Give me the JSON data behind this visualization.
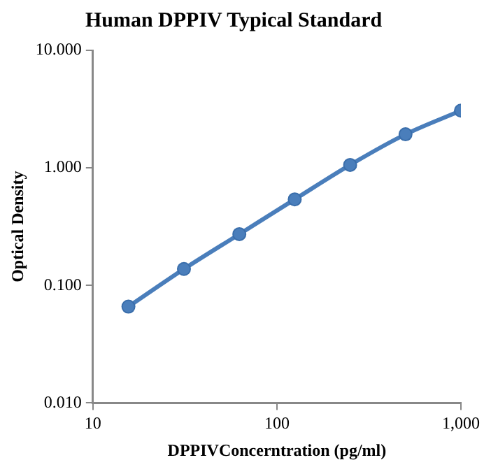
{
  "chart_data": {
    "type": "line",
    "title": "Human DPPIV Typical Standard",
    "xlabel": "DPPIVConcerntration (pg/ml)",
    "ylabel": "Optical Density",
    "x": [
      15.6,
      31.25,
      62.5,
      125,
      250,
      500,
      1000
    ],
    "series": [
      {
        "color": "#4a7ebb",
        "values": [
          0.066,
          0.138,
          0.273,
          0.54,
          1.06,
          1.93,
          3.07
        ]
      }
    ],
    "log": "xy",
    "xlim": [
      10,
      1000
    ],
    "ylim": [
      0.01,
      10
    ],
    "xticks": [
      10,
      100,
      {
        "value": 1000,
        "label": "1,000"
      }
    ],
    "yticks": [
      {
        "value": 0.01,
        "label": "0.010"
      },
      {
        "value": 0.1,
        "label": "0.100"
      },
      {
        "value": 1,
        "label": "1.000"
      },
      {
        "value": 10,
        "label": "10.000"
      }
    ],
    "grid": false,
    "legend": false,
    "marker": "circle",
    "line_style": "solid"
  }
}
